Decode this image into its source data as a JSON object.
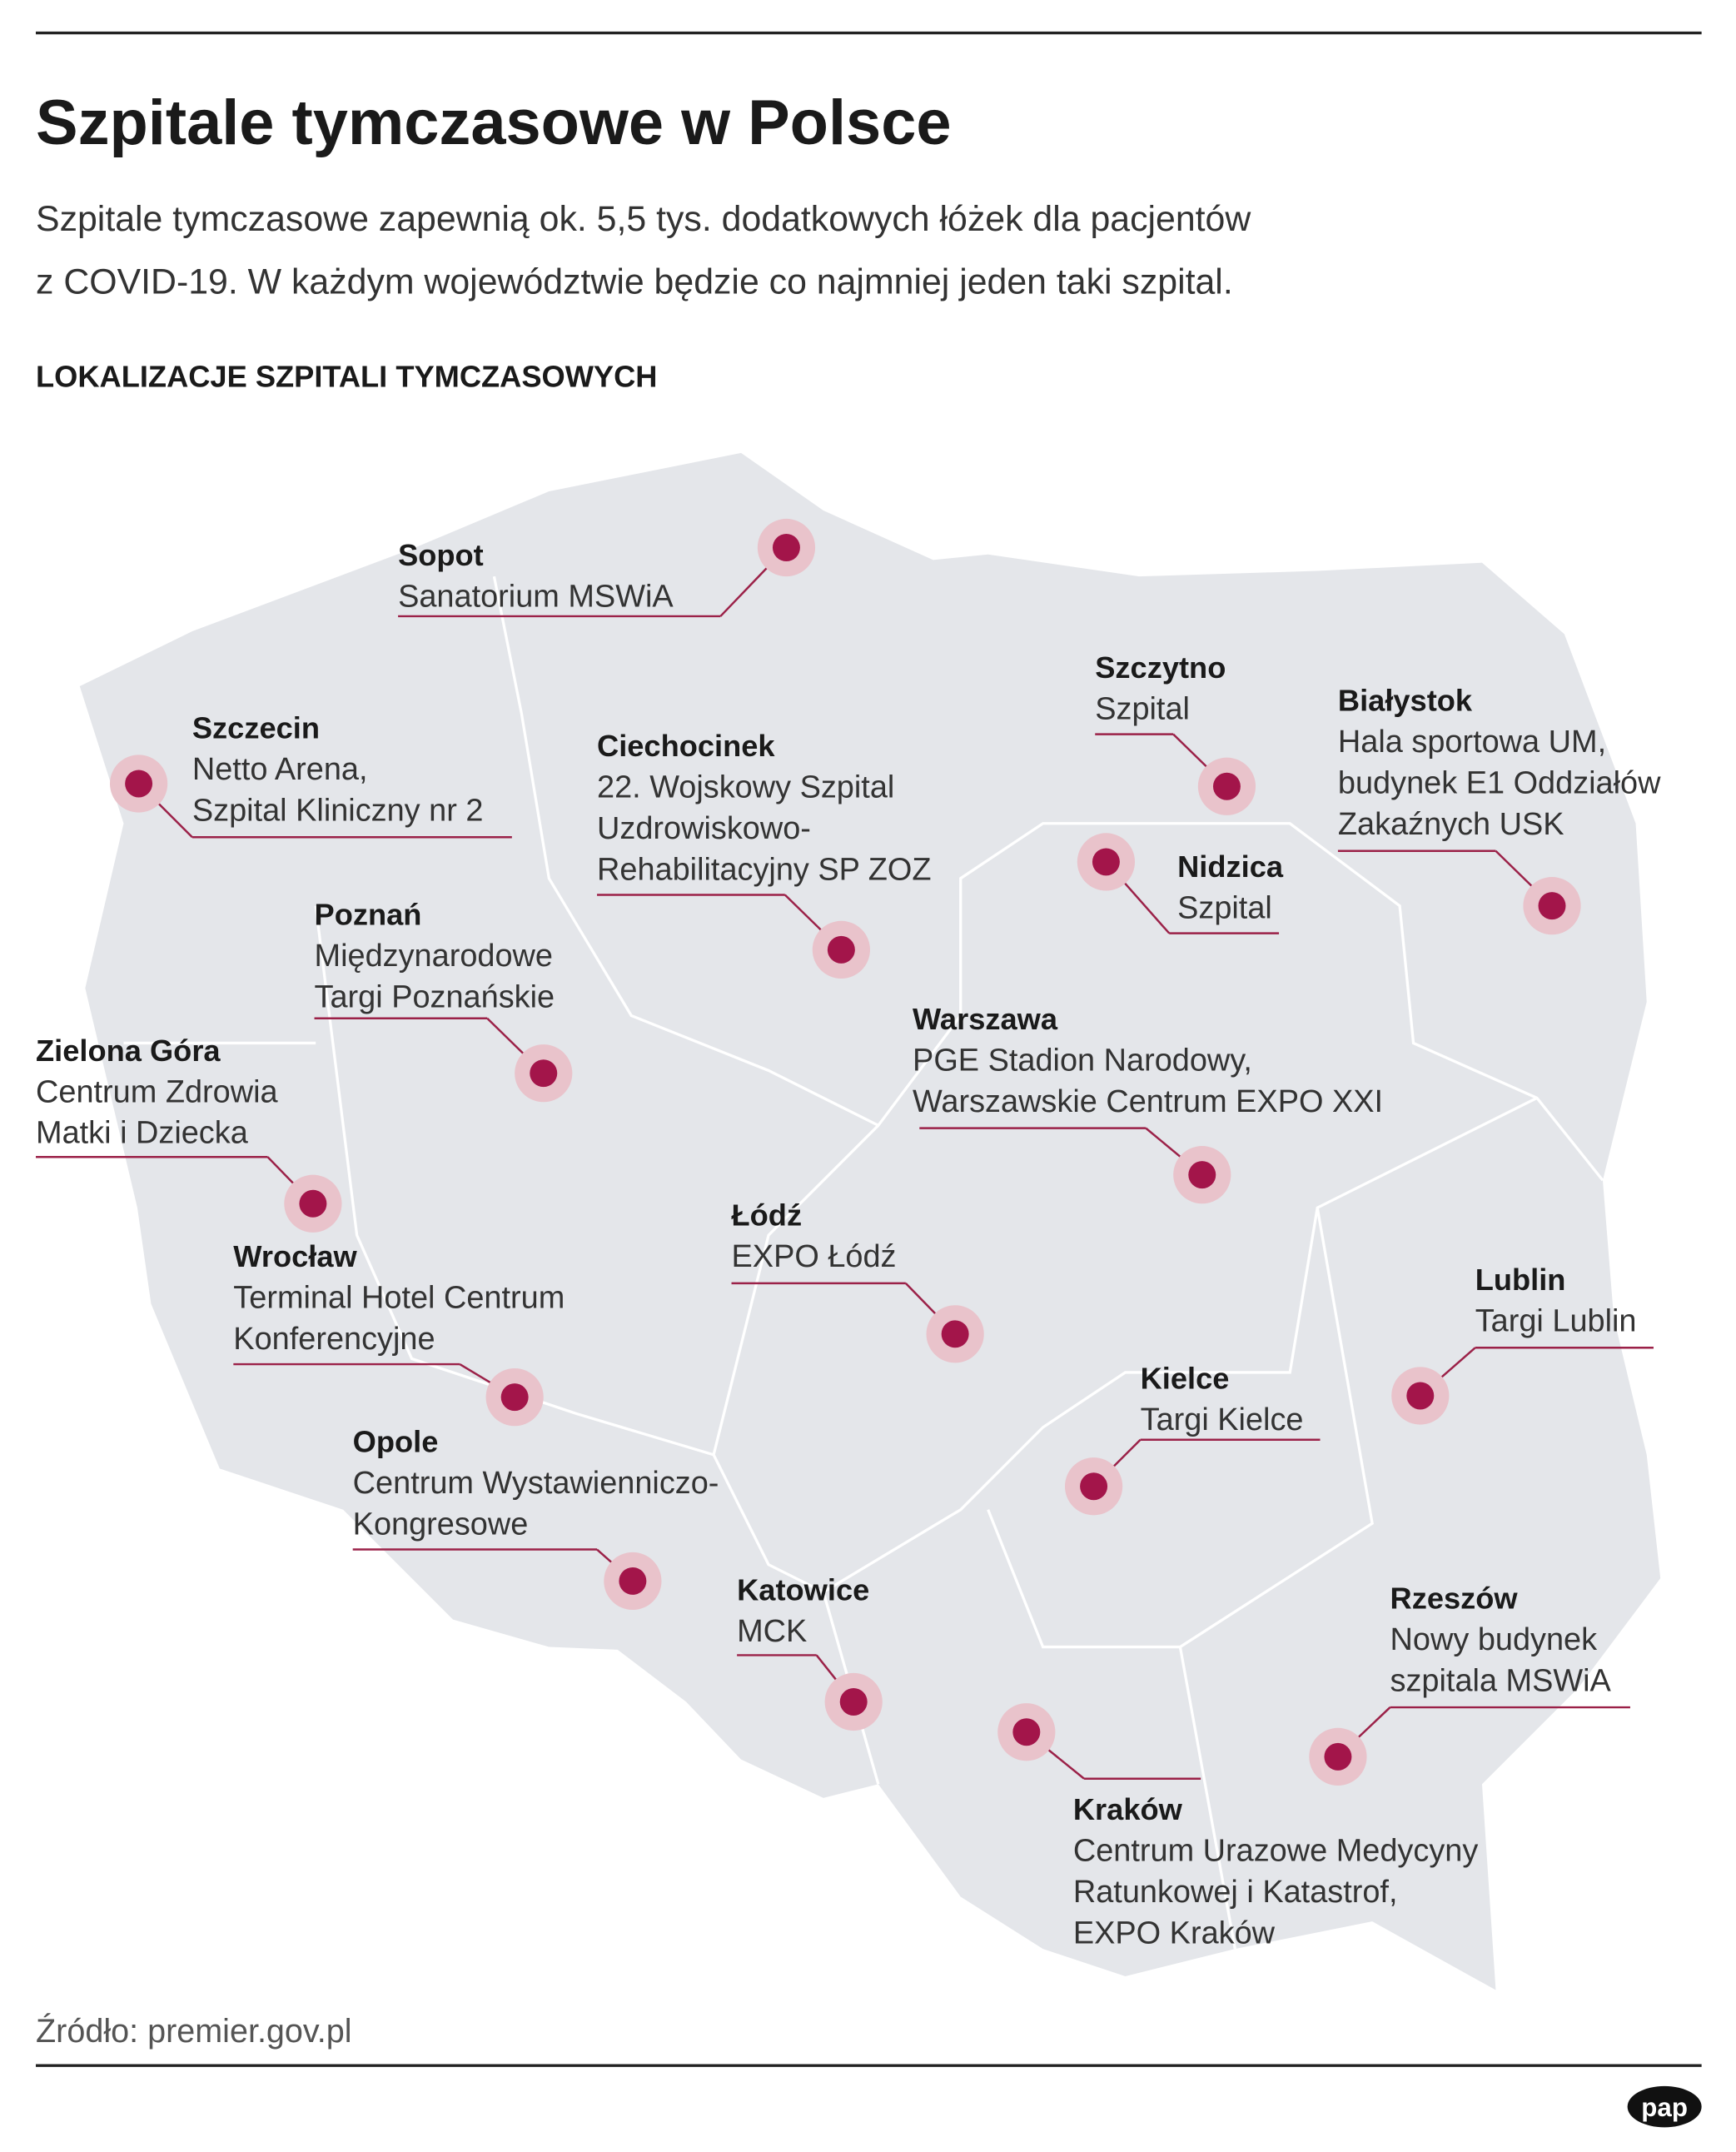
{
  "header": {
    "title": "Szpitale tymczasowe w Polsce",
    "subtitle": [
      "Szpitale tymczasowe zapewnią ok. 5,5 tys. dodatkowych łóżek dla pacjentów",
      "z COVID-19. W każdym województwie będzie co najmniej jeden taki szpital."
    ],
    "section_label": "LOKALIZACJE SZPITALI TYMCZASOWYCH"
  },
  "locations": [
    {
      "city": "Sopot",
      "description": [
        "Sanatorium MSWiA"
      ]
    },
    {
      "city": "Szczecin",
      "description": [
        "Netto Arena,",
        "Szpital Kliniczny nr 2"
      ]
    },
    {
      "city": "Ciechocinek",
      "description": [
        "22. Wojskowy Szpital",
        "Uzdrowiskowo-",
        "Rehabilitacyjny SP ZOZ"
      ]
    },
    {
      "city": "Szczytno",
      "description": [
        "Szpital"
      ]
    },
    {
      "city": "Białystok",
      "description": [
        "Hala sportowa UM,",
        "budynek E1 Oddziałów",
        "Zakaźnych USK"
      ]
    },
    {
      "city": "Nidzica",
      "description": [
        "Szpital"
      ]
    },
    {
      "city": "Poznań",
      "description": [
        "Międzynarodowe",
        "Targi Poznańskie"
      ]
    },
    {
      "city": "Warszawa",
      "description": [
        "PGE Stadion Narodowy,",
        "Warszawskie Centrum EXPO XXI"
      ]
    },
    {
      "city": "Zielona Góra",
      "description": [
        "Centrum Zdrowia",
        "Matki i Dziecka"
      ]
    },
    {
      "city": "Łódź",
      "description": [
        "EXPO Łódź"
      ]
    },
    {
      "city": "Wrocław",
      "description": [
        "Terminal Hotel Centrum",
        "Konferencyjne"
      ]
    },
    {
      "city": "Lublin",
      "description": [
        "Targi Lublin"
      ]
    },
    {
      "city": "Kielce",
      "description": [
        "Targi Kielce"
      ]
    },
    {
      "city": "Opole",
      "description": [
        "Centrum Wystawienniczo-",
        "Kongresowe"
      ]
    },
    {
      "city": "Katowice",
      "description": [
        "MCK"
      ]
    },
    {
      "city": "Rzeszów",
      "description": [
        "Nowy budynek",
        "szpitala MSWiA"
      ]
    },
    {
      "city": "Kraków",
      "description": [
        "Centrum Urazowe Medycyny",
        "Ratunkowej i Katastrof,",
        "EXPO Kraków"
      ]
    }
  ],
  "footer": {
    "source": "Źródło: premier.gov.pl",
    "logo": "pap"
  }
}
